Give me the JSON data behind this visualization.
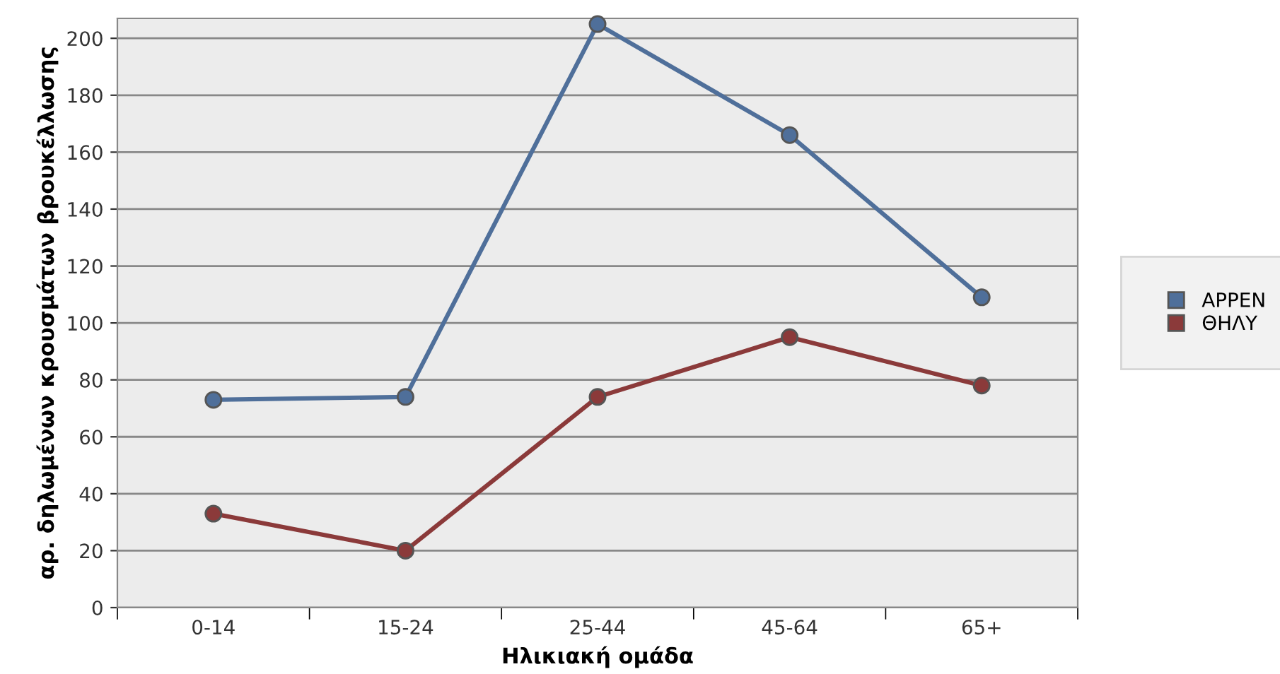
{
  "chart_data": {
    "type": "line",
    "xlabel": "Ηλικιακή ομάδα",
    "ylabel": "αρ. δηλωμένων κρουσμάτων βρουκέλλωσης",
    "categories": [
      "0-14",
      "15-24",
      "25-44",
      "45-64",
      "65+"
    ],
    "series": [
      {
        "name": "ΑΡΡΕΝ",
        "color": "#4f6f9a",
        "values": [
          73,
          74,
          205,
          166,
          109
        ]
      },
      {
        "name": "ΘΗΛΥ",
        "color": "#8b3a3a",
        "values": [
          33,
          20,
          74,
          95,
          78
        ]
      }
    ],
    "ylim": [
      0,
      207
    ],
    "yticks": [
      0,
      20,
      40,
      60,
      80,
      100,
      120,
      140,
      160,
      180,
      200
    ],
    "grid": "y",
    "legend": "right",
    "marker": "circle",
    "line_style": "solid"
  }
}
